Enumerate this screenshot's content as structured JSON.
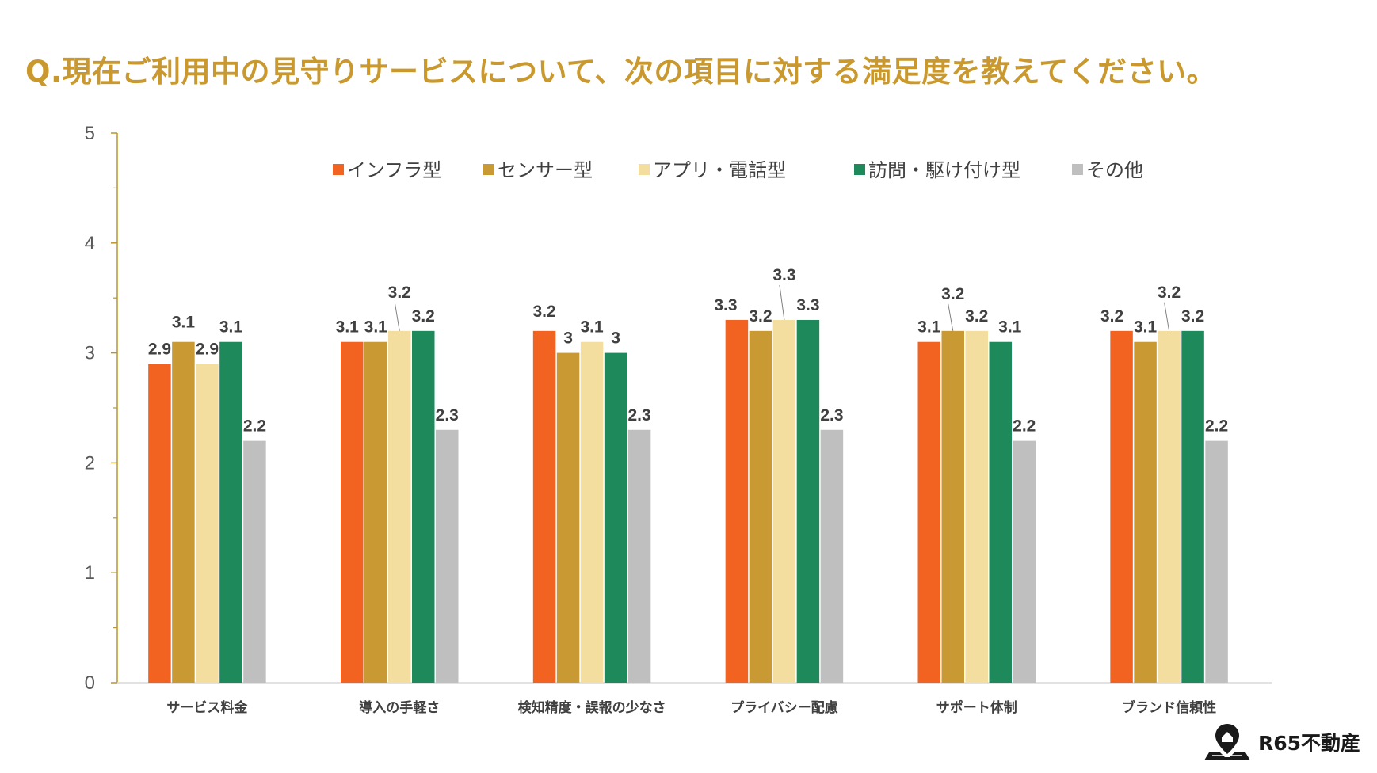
{
  "title": "Q.現在ご利用中の見守りサービスについて、次の項目に対する満足度を教えてください。",
  "brand": {
    "name": "R65不動産",
    "icon": "house-pin-map-icon"
  },
  "colors": {
    "title": "#c9992f",
    "axis": "#b8962e",
    "series": [
      "#f26322",
      "#c99a33",
      "#f3dea0",
      "#1e8a5c",
      "#bfbfbf"
    ]
  },
  "chart_data": {
    "type": "bar",
    "title": "Q.現在ご利用中の見守りサービスについて、次の項目に対する満足度を教えてください。",
    "xlabel": "",
    "ylabel": "",
    "ylim": [
      0,
      5
    ],
    "yticks": [
      "0",
      "1",
      "2",
      "3",
      "4",
      "5"
    ],
    "legend_position": "top",
    "categories": [
      "サービス料金",
      "導入の手軽さ",
      "検知精度・誤報の少なさ",
      "プライバシー配慮",
      "サポート体制",
      "ブランド信頼性"
    ],
    "series": [
      {
        "name": "インフラ型",
        "values": [
          2.9,
          3.1,
          3.2,
          3.3,
          3.1,
          3.2
        ],
        "labels": [
          "2.9",
          "3.1",
          "3.2",
          "3.3",
          "3.1",
          "3.2"
        ]
      },
      {
        "name": "センサー型",
        "values": [
          3.1,
          3.1,
          3.0,
          3.2,
          3.2,
          3.1
        ],
        "labels": [
          "3.1",
          "3.1",
          "3",
          "3.2",
          "3.2",
          "3.1"
        ]
      },
      {
        "name": "アプリ・電話型",
        "values": [
          2.9,
          3.2,
          3.1,
          3.3,
          3.2,
          3.2
        ],
        "labels": [
          "2.9",
          "3.2",
          "3.1",
          "3.3",
          "3.2",
          "3.2"
        ]
      },
      {
        "name": "訪問・駆け付け型",
        "values": [
          3.1,
          3.2,
          3.0,
          3.3,
          3.1,
          3.2
        ],
        "labels": [
          "3.1",
          "3.2",
          "3",
          "3.3",
          "3.1",
          "3.2"
        ]
      },
      {
        "name": "その他",
        "values": [
          2.2,
          2.3,
          2.3,
          2.3,
          2.2,
          2.2
        ],
        "labels": [
          "2.2",
          "2.3",
          "2.3",
          "2.3",
          "2.2",
          "2.2"
        ]
      }
    ]
  }
}
